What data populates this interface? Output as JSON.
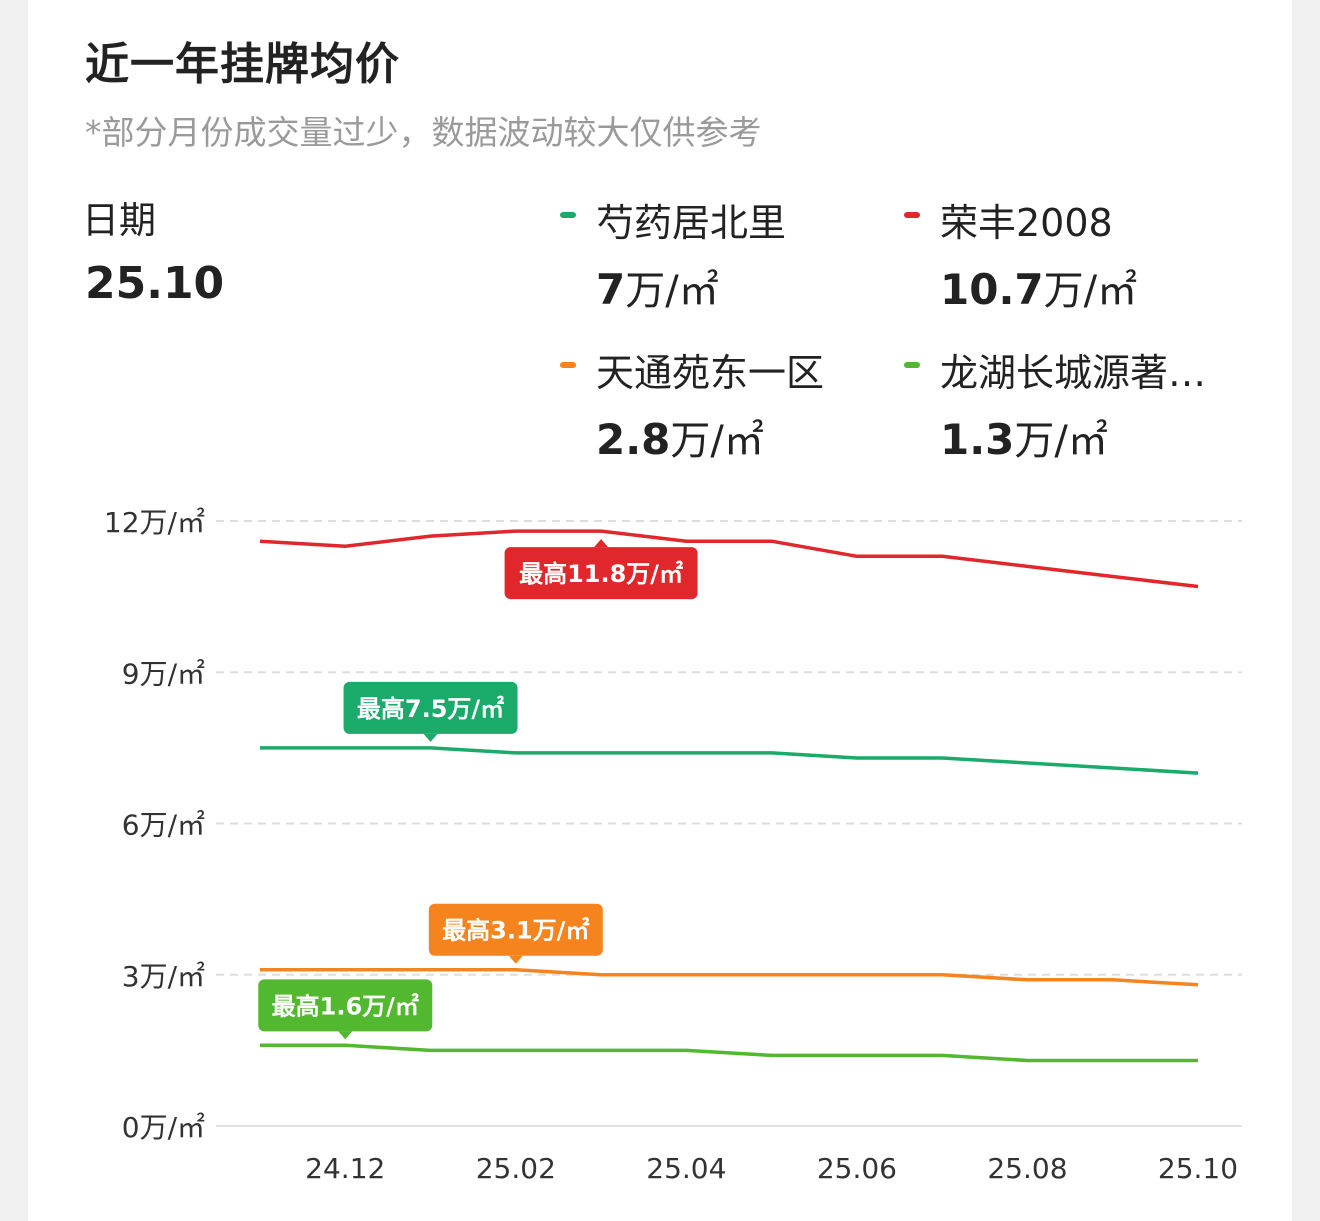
{
  "header": {
    "title": "近一年挂牌均价",
    "subtitle": "*部分月份成交量过少，数据波动较大仅供参考"
  },
  "date": {
    "label": "日期",
    "value": "25.10"
  },
  "legend": [
    {
      "name": "芍药居北里",
      "value": "7",
      "unit": "万/㎡",
      "color": "#1aab6b"
    },
    {
      "name": "荣丰2008",
      "value": "10.7",
      "unit": "万/㎡",
      "color": "#e0272c"
    },
    {
      "name": "天通苑东一区",
      "value": "2.8",
      "unit": "万/㎡",
      "color": "#f5841f"
    },
    {
      "name": "龙湖长城源著…",
      "value": "1.3",
      "unit": "万/㎡",
      "color": "#52b82f"
    }
  ],
  "chart_data": {
    "type": "line",
    "title": "近一年挂牌均价",
    "subtitle": "*部分月份成交量过少，数据波动较大仅供参考",
    "xlabel": "",
    "ylabel": "万/㎡",
    "x": [
      "24.11",
      "24.12",
      "25.01",
      "25.02",
      "25.03",
      "25.04",
      "25.05",
      "25.06",
      "25.07",
      "25.08",
      "25.09",
      "25.10"
    ],
    "x_tick_labels": [
      "24.12",
      "25.02",
      "25.04",
      "25.06",
      "25.08",
      "25.10"
    ],
    "y_tick_labels": [
      "0万/㎡",
      "3万/㎡",
      "6万/㎡",
      "9万/㎡",
      "12万/㎡"
    ],
    "y_ticks": [
      0,
      3,
      6,
      9,
      12
    ],
    "ylim": [
      0,
      12
    ],
    "grid": "horizontal dashed",
    "legend_position": "top",
    "series": [
      {
        "name": "芍药居北里",
        "color": "#1aab6b",
        "values": [
          7.5,
          7.5,
          7.5,
          7.4,
          7.4,
          7.4,
          7.4,
          7.3,
          7.3,
          7.2,
          7.1,
          7.0
        ],
        "max_label": "最高7.5万/㎡",
        "max_index": 2
      },
      {
        "name": "荣丰2008",
        "color": "#e0272c",
        "values": [
          11.6,
          11.5,
          11.7,
          11.8,
          11.8,
          11.6,
          11.6,
          11.3,
          11.3,
          11.1,
          10.9,
          10.7
        ],
        "max_label": "最高11.8万/㎡",
        "max_index": 4
      },
      {
        "name": "天通苑东一区",
        "color": "#f5841f",
        "values": [
          3.1,
          3.1,
          3.1,
          3.1,
          3.0,
          3.0,
          3.0,
          3.0,
          3.0,
          2.9,
          2.9,
          2.8
        ],
        "max_label": "最高3.1万/㎡",
        "max_index": 3
      },
      {
        "name": "龙湖长城源著…",
        "color": "#52b82f",
        "values": [
          1.6,
          1.6,
          1.5,
          1.5,
          1.5,
          1.5,
          1.4,
          1.4,
          1.4,
          1.3,
          1.3,
          1.3
        ],
        "max_label": "最高1.6万/㎡",
        "max_index": 1
      }
    ]
  }
}
